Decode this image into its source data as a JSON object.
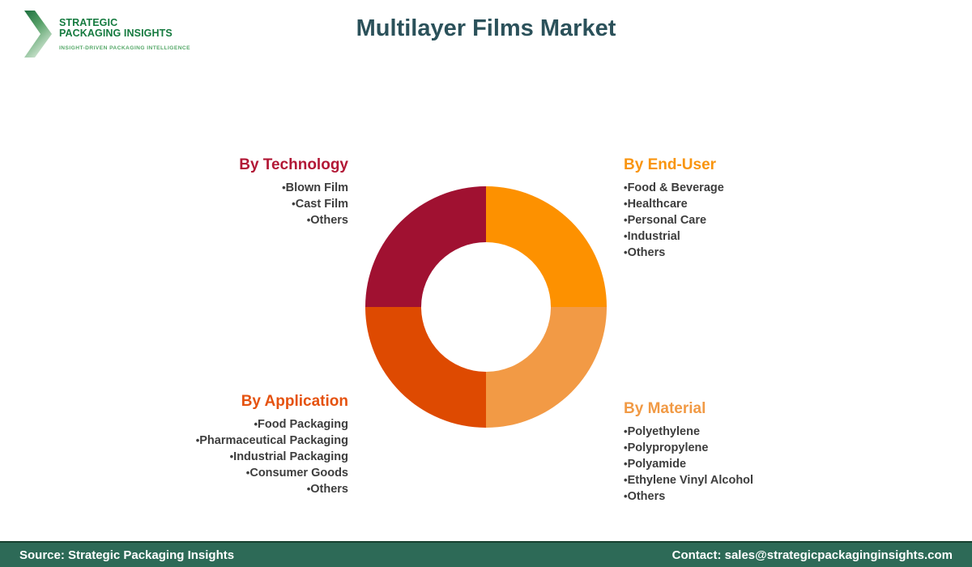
{
  "logo": {
    "name_line1": "STRATEGIC",
    "name_line2": "PACKAGING INSIGHTS",
    "tagline": "INSIGHT-DRIVEN PACKAGING INTELLIGENCE",
    "text_color": "#157A3F",
    "tagline_color": "#55A868"
  },
  "header": {
    "title": "Multilayer Films Market",
    "title_color": "#2B515A"
  },
  "chart_data": {
    "type": "pie",
    "subtype": "donut",
    "title": "Multilayer Films Market",
    "start_angle_deg": -90,
    "direction": "clockwise",
    "inner_radius_ratio": 0.54,
    "legend_position": "around-quadrants",
    "segments": [
      {
        "name": "By End-User",
        "quadrant": "top-right",
        "value": 25,
        "color": "#FD9100"
      },
      {
        "name": "By Material",
        "quadrant": "bottom-right",
        "value": 25,
        "color": "#F29A45"
      },
      {
        "name": "By Application",
        "quadrant": "bottom-left",
        "value": 25,
        "color": "#DE4A01"
      },
      {
        "name": "By Technology",
        "quadrant": "top-left",
        "value": 25,
        "color": "#A01131"
      }
    ]
  },
  "sections": [
    {
      "title": "By Technology",
      "color": "#B21836",
      "align": "right",
      "items": [
        "Blown Film",
        "Cast Film",
        "Others"
      ]
    },
    {
      "title": "By End-User",
      "color": "#F9950F",
      "align": "left",
      "items": [
        "Food & Beverage",
        "Healthcare",
        "Personal Care",
        "Industrial",
        "Others"
      ]
    },
    {
      "title": "By Application",
      "color": "#E5520F",
      "align": "right",
      "items": [
        "Food Packaging",
        "Pharmaceutical Packaging",
        "Industrial Packaging",
        "Consumer Goods",
        "Others"
      ]
    },
    {
      "title": "By Material",
      "color": "#F19A45",
      "align": "left",
      "items": [
        "Polyethylene",
        "Polypropylene",
        "Polyamide",
        "Ethylene Vinyl Alcohol",
        "Others"
      ]
    }
  ],
  "list_text_color": "#3D3D3D",
  "footer": {
    "source": "Source: Strategic Packaging Insights",
    "contact": "Contact: sales@strategicpackaginginsights.com",
    "background": "#2D6A57",
    "text_color": "#FFFFFF"
  }
}
